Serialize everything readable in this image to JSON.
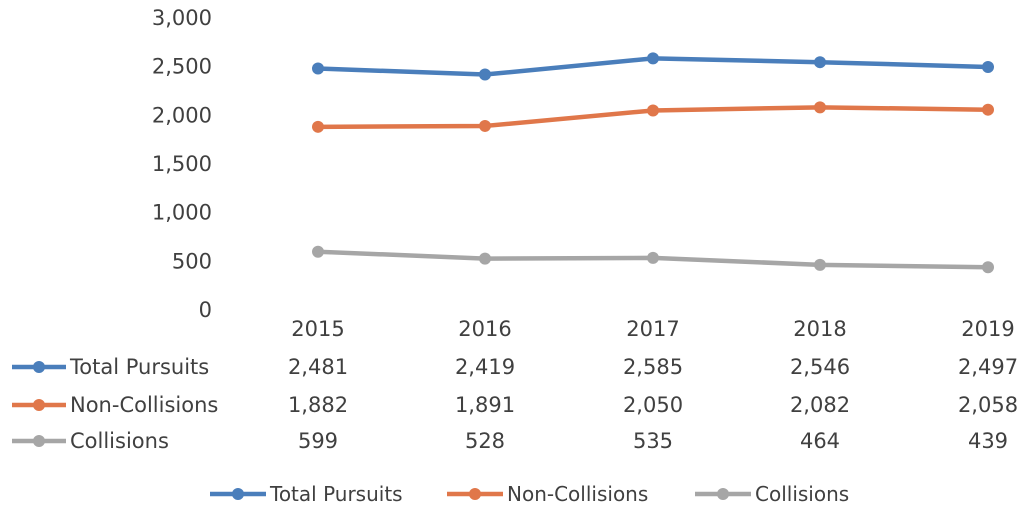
{
  "chart_data": {
    "type": "line",
    "categories": [
      "2015",
      "2016",
      "2017",
      "2018",
      "2019"
    ],
    "series": [
      {
        "name": "Total Pursuits",
        "values": [
          2481,
          2419,
          2585,
          2546,
          2497
        ],
        "labels": [
          "2,481",
          "2,419",
          "2,585",
          "2,546",
          "2,497"
        ],
        "color": "#4a7ebb"
      },
      {
        "name": "Non-Collisions",
        "values": [
          1882,
          1891,
          2050,
          2082,
          2058
        ],
        "labels": [
          "1,882",
          "1,891",
          "2,050",
          "2,082",
          "2,058"
        ],
        "color": "#e0774a"
      },
      {
        "name": "Collisions",
        "values": [
          599,
          528,
          535,
          464,
          439
        ],
        "labels": [
          "599",
          "528",
          "535",
          "464",
          "439"
        ],
        "color": "#a6a6a6"
      }
    ],
    "yticks": [
      "0",
      "500",
      "1,000",
      "1,500",
      "2,000",
      "2,500",
      "3,000"
    ],
    "ylim": [
      0,
      3000
    ],
    "grid": false,
    "data_table": true,
    "legend_position": "bottom"
  }
}
